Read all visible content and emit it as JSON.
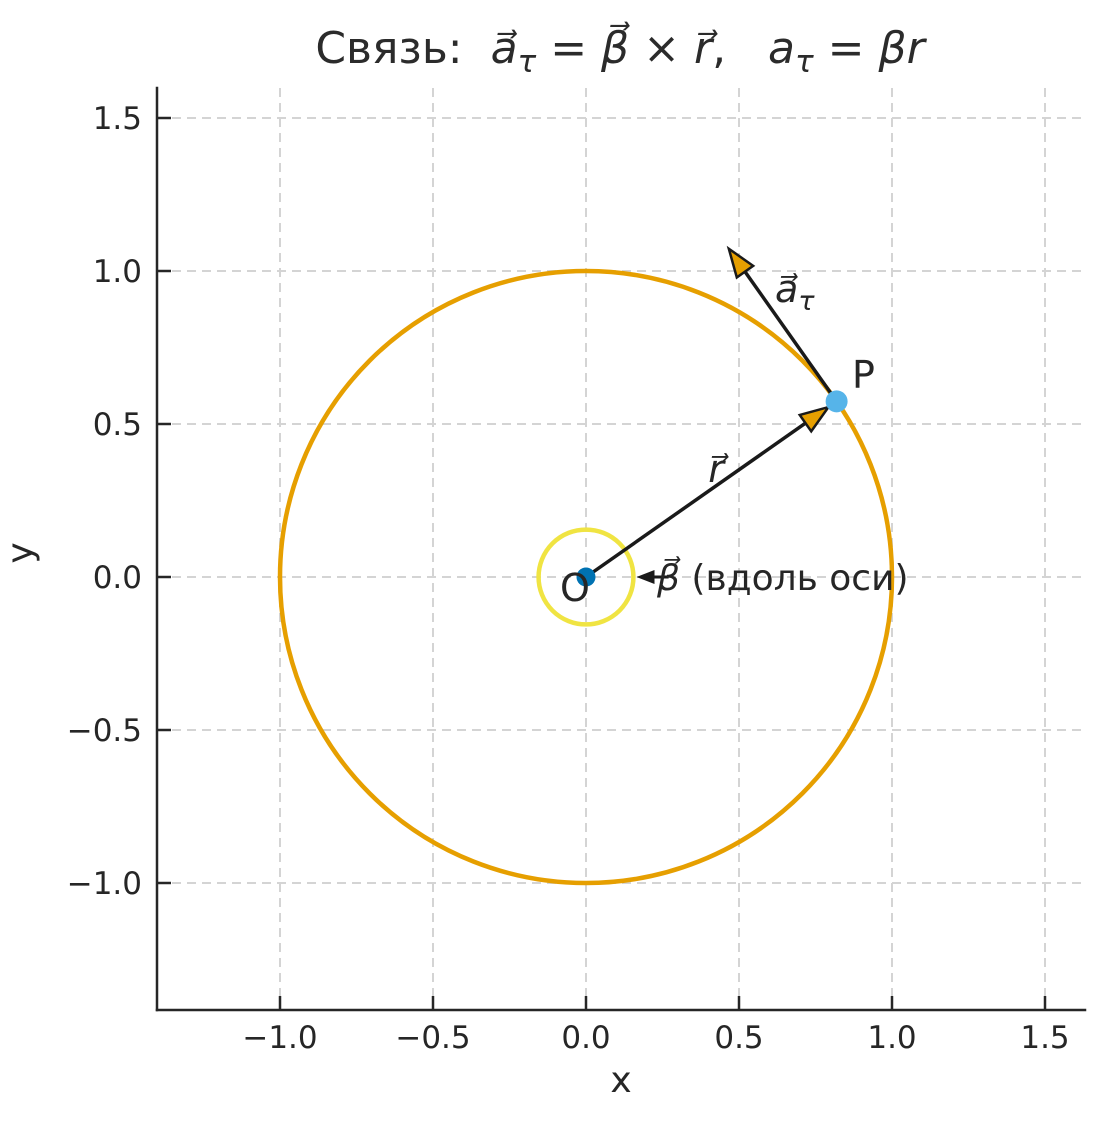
{
  "title": {
    "prefix": "Связь:  ",
    "a_vec": "a⃗",
    "tau_sub1": "τ",
    "eq1": " = ",
    "beta_vec": "β⃗",
    "times": " × ",
    "r_vec": "r⃗",
    "comma": ",   ",
    "a_plain": "a",
    "tau_sub2": "τ",
    "eq2": " = ",
    "beta_r": "βr"
  },
  "axes": {
    "xlabel": "x",
    "ylabel": "y",
    "x_tick_labels": [
      "−1.0",
      "−0.5",
      "0.0",
      "0.5",
      "1.0",
      "1.5"
    ],
    "y_tick_labels": [
      "−1.0",
      "−0.5",
      "0.0",
      "0.5",
      "1.0",
      "1.5"
    ]
  },
  "annotations": {
    "origin_label": "O",
    "point_label": "P",
    "r_label": "r⃗",
    "a_tau_label": "a⃗",
    "a_tau_sub": "τ",
    "beta_label": "β⃗",
    "beta_rest": " (вдоль оси)"
  },
  "colors": {
    "background": "#ffffff",
    "text": "#262626",
    "grid": "#d4d4d4",
    "spine": "#262626",
    "circle_orange": "#E69F00",
    "circle_yellow": "#F0E442",
    "point_O_blue": "#0072B2",
    "point_P_blue": "#56B4E9",
    "arrow_black": "#1a1a1a"
  },
  "chart_data": {
    "type": "line",
    "title": "Связь:  a⃗τ = β⃗ × r⃗,   aτ = βr",
    "xlabel": "x",
    "ylabel": "y",
    "xlim": [
      -1.4,
      1.63
    ],
    "ylim": [
      -1.42,
      1.6
    ],
    "x_ticks": [
      -1.0,
      -0.5,
      0.0,
      0.5,
      1.0,
      1.5
    ],
    "y_ticks": [
      -1.0,
      -0.5,
      0.0,
      0.5,
      1.0,
      1.5
    ],
    "grid": {
      "visible": true,
      "style": "dashed"
    },
    "aspect": "equal",
    "circles": [
      {
        "name": "circular-trajectory",
        "center": [
          0,
          0
        ],
        "radius": 1.0,
        "stroke": "circle_orange"
      },
      {
        "name": "rotation-axis-marker",
        "center": [
          0,
          0
        ],
        "radius": 0.155,
        "stroke": "circle_yellow"
      }
    ],
    "points": [
      {
        "name": "O",
        "xy": [
          0,
          0
        ],
        "color": "point_O_blue",
        "label": "O"
      },
      {
        "name": "P",
        "xy": [
          0.819,
          0.574
        ],
        "color": "point_P_blue",
        "label": "P",
        "angle_deg": 35
      }
    ],
    "vectors": [
      {
        "name": "r",
        "from": [
          0,
          0
        ],
        "to": [
          0.819,
          0.574
        ],
        "label": "r⃗"
      },
      {
        "name": "a_tau",
        "from": [
          0.819,
          0.574
        ],
        "to": [
          0.463,
          1.078
        ],
        "label": "a⃗τ"
      },
      {
        "name": "beta",
        "from": [
          0.27,
          0.0
        ],
        "to": [
          0.165,
          0.0
        ],
        "label": "β⃗ (вдоль оси)"
      }
    ]
  }
}
